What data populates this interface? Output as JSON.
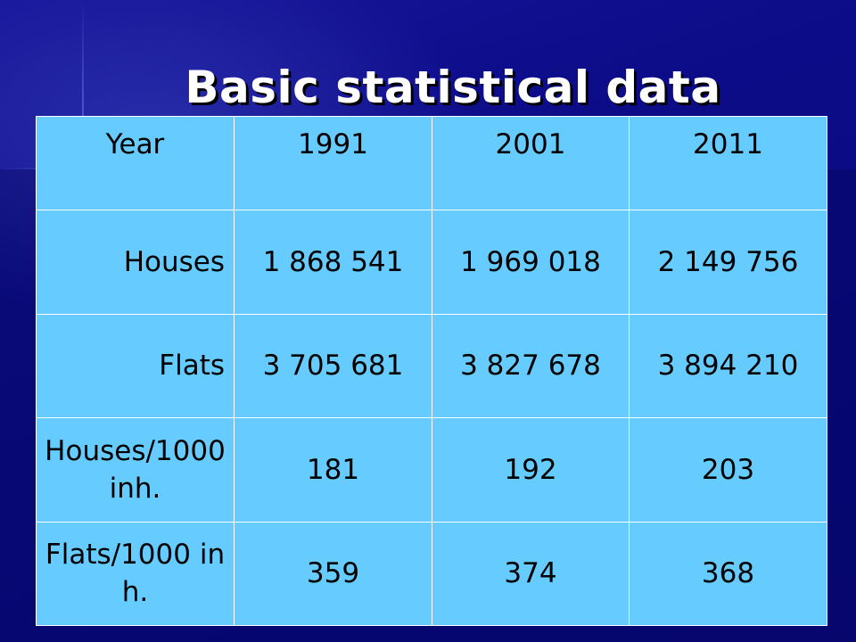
{
  "slide": {
    "title": "Basic statistical data"
  },
  "table": {
    "header": [
      "Year",
      "1991",
      "2001",
      "2011"
    ],
    "rows": [
      [
        "Houses",
        "1 868 541",
        "1 969 018",
        "2 149 756"
      ],
      [
        "Flats",
        "3 705 681",
        "3 827 678",
        "3 894 210"
      ],
      [
        "Houses/1000 inh.",
        "181",
        "192",
        "203"
      ],
      [
        "Flats/1000 inh.",
        "359",
        "374",
        "368"
      ]
    ]
  },
  "colors": {
    "background": "#0b0b86",
    "table_fill": "#66ccff",
    "table_border": "#ffffff",
    "title_text": "#ffffff"
  }
}
